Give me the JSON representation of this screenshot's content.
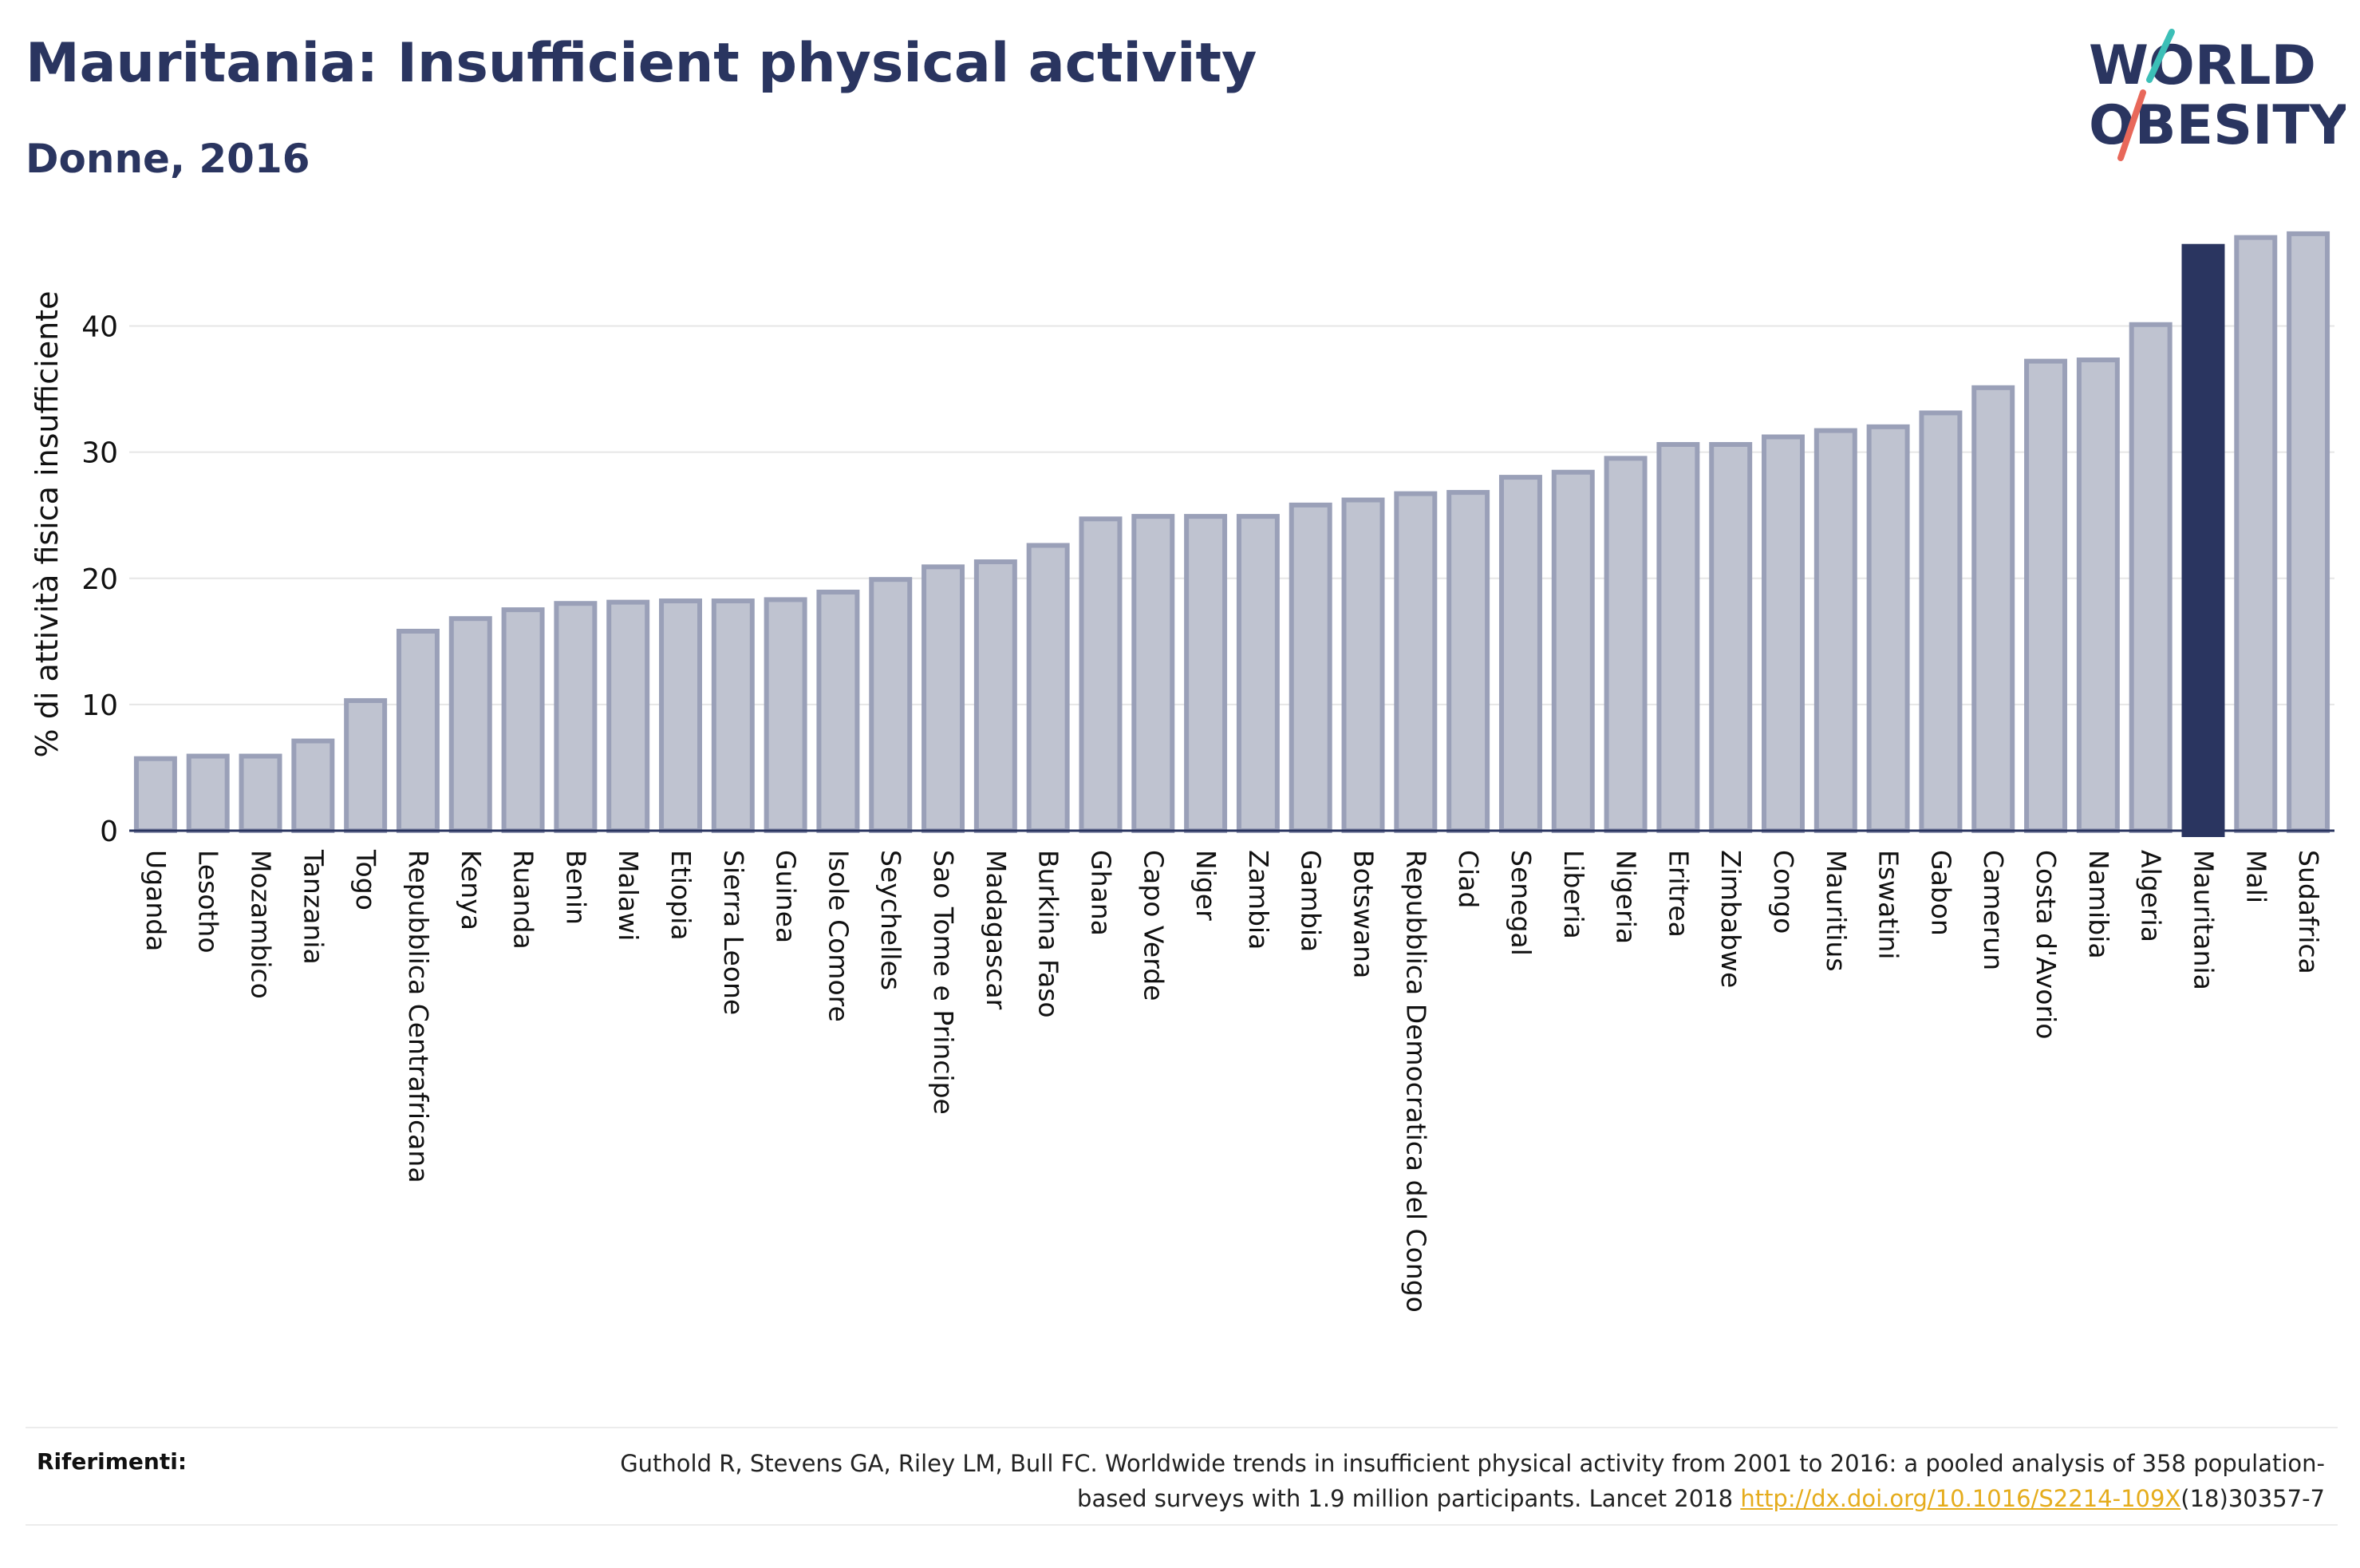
{
  "header": {
    "title": "Mauritania: Insufficient physical activity",
    "subtitle": "Donne, 2016"
  },
  "logo": {
    "line1": "WORLD",
    "line2": "OBESITY"
  },
  "chart_data": {
    "type": "bar",
    "ylabel": "% di attività fisica insufficiente",
    "xlabel": "",
    "ylim": [
      0,
      48
    ],
    "yticks": [
      0,
      10,
      20,
      30,
      40
    ],
    "grid": true,
    "highlight": "Mauritania",
    "categories": [
      "Uganda",
      "Lesotho",
      "Mozambico",
      "Tanzania",
      "Togo",
      "Repubblica Centrafricana",
      "Kenya",
      "Ruanda",
      "Benin",
      "Malawi",
      "Etiopia",
      "Sierra Leone",
      "Guinea",
      "Isole Comore",
      "Seychelles",
      "Sao Tome e Principe",
      "Madagascar",
      "Burkina Faso",
      "Ghana",
      "Capo Verde",
      "Niger",
      "Zambia",
      "Gambia",
      "Botswana",
      "Repubblica Democratica del Congo",
      "Ciad",
      "Senegal",
      "Liberia",
      "Nigeria",
      "Eritrea",
      "Zimbabwe",
      "Congo",
      "Mauritius",
      "Eswatini",
      "Gabon",
      "Camerun",
      "Costa d'Avorio",
      "Namibia",
      "Algeria",
      "Mauritania",
      "Mali",
      "Sudafrica"
    ],
    "values": [
      5.9,
      6.1,
      6.1,
      7.3,
      10.5,
      16.0,
      17.0,
      17.7,
      18.2,
      18.3,
      18.4,
      18.4,
      18.5,
      19.1,
      20.1,
      21.1,
      21.5,
      22.8,
      24.9,
      25.1,
      25.1,
      25.1,
      26.0,
      26.4,
      26.9,
      27.0,
      28.2,
      28.6,
      29.7,
      30.8,
      30.8,
      31.4,
      31.9,
      32.2,
      33.3,
      35.3,
      37.4,
      37.5,
      40.3,
      46.5,
      47.2,
      47.5
    ],
    "colors": {
      "bar": "#bfc3d0",
      "bar_border": "#9aa0b8",
      "highlight": "#2a3560",
      "axis": "#2a3560",
      "grid": "#e6e6e6"
    }
  },
  "references": {
    "label": "Riferimenti:",
    "text_before": "Guthold R, Stevens GA, Riley LM, Bull FC. Worldwide trends in insufficient physical activity from 2001 to 2016: a pooled analysis of 358 population-based surveys with 1.9 million participants. Lancet 2018 ",
    "link_text": "http://dx.doi.org/10.1016/S2214-109X",
    "text_after": "(18)30357-7"
  }
}
